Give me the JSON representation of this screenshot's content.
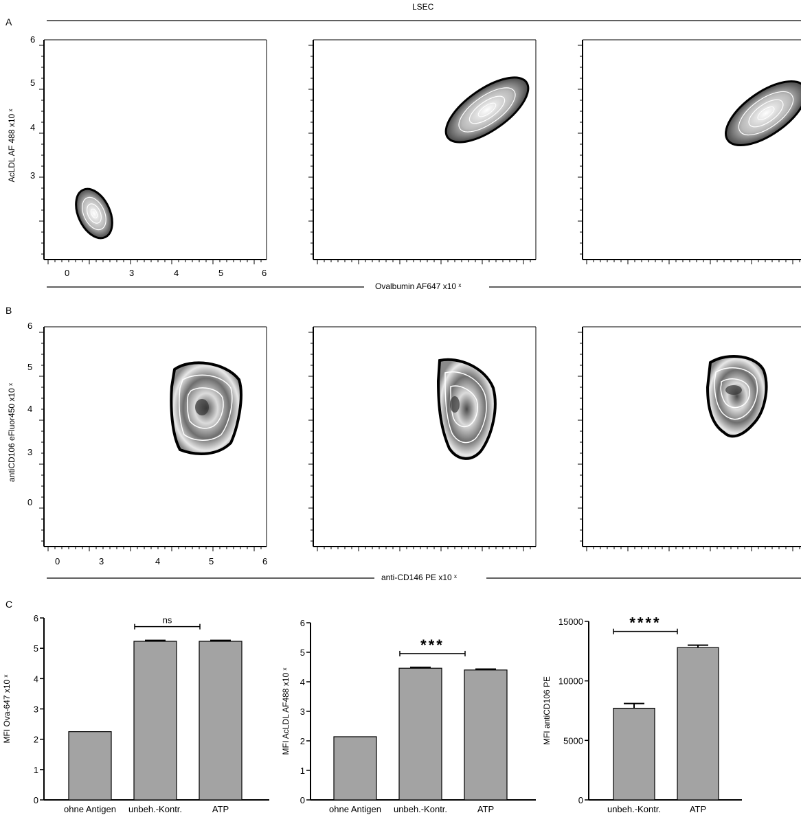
{
  "panels": {
    "A": {
      "letter": "A",
      "header": "LSEC",
      "ylabel": "AcLDL AF 488 x10 ˣ",
      "xlabel": "Ovalbumin AF647 x10 ˣ",
      "yticks": [
        "6",
        "5",
        "4",
        "3"
      ],
      "xticks": [
        "0",
        "3",
        "4",
        "5",
        "6"
      ]
    },
    "B": {
      "letter": "B",
      "ylabel": "antiCD106 eFluor450 x10 ˣ",
      "xlabel": "anti-CD146 PE x10 ˣ",
      "yticks": [
        "6",
        "5",
        "4",
        "3",
        "0"
      ],
      "xticks": [
        "0",
        "3",
        "4",
        "5",
        "6"
      ]
    },
    "C": {
      "letter": "C"
    }
  },
  "chart_data": [
    {
      "type": "bar",
      "panel": "C1",
      "ylabel": "MFI Ova-647 x10 ˣ",
      "categories": [
        "ohne Antigen",
        "unbeh.-Kontr.",
        "ATP"
      ],
      "values": [
        2.25,
        5.23,
        5.23
      ],
      "errors": [
        0,
        0.03,
        0.03
      ],
      "ylim": [
        0,
        6
      ],
      "yticks": [
        "0",
        "1",
        "2",
        "3",
        "4",
        "5",
        "6"
      ],
      "significance": {
        "from": 1,
        "to": 2,
        "label": "ns"
      },
      "color": "#a3a3a3"
    },
    {
      "type": "bar",
      "panel": "C2",
      "ylabel": "MFI AcLDL AF488 x10 ˣ",
      "categories": [
        "ohne Antigen",
        "unbeh.-Kontr.",
        "ATP"
      ],
      "values": [
        2.14,
        4.46,
        4.4
      ],
      "errors": [
        0,
        0.03,
        0.03
      ],
      "ylim": [
        0,
        6
      ],
      "yticks": [
        "0",
        "1",
        "2",
        "3",
        "4",
        "5",
        "6"
      ],
      "significance": {
        "from": 1,
        "to": 2,
        "label": "***"
      },
      "color": "#a3a3a3"
    },
    {
      "type": "bar",
      "panel": "C3",
      "ylabel": "MFI antiCD106 PE",
      "categories": [
        "unbeh.-Kontr.",
        "ATP"
      ],
      "values": [
        7700,
        12800
      ],
      "errors": [
        400,
        200
      ],
      "ylim": [
        0,
        15000
      ],
      "yticks": [
        "0",
        "5000",
        "10000",
        "15000"
      ],
      "significance": {
        "from": 0,
        "to": 1,
        "label": "****"
      },
      "color": "#a3a3a3"
    }
  ]
}
